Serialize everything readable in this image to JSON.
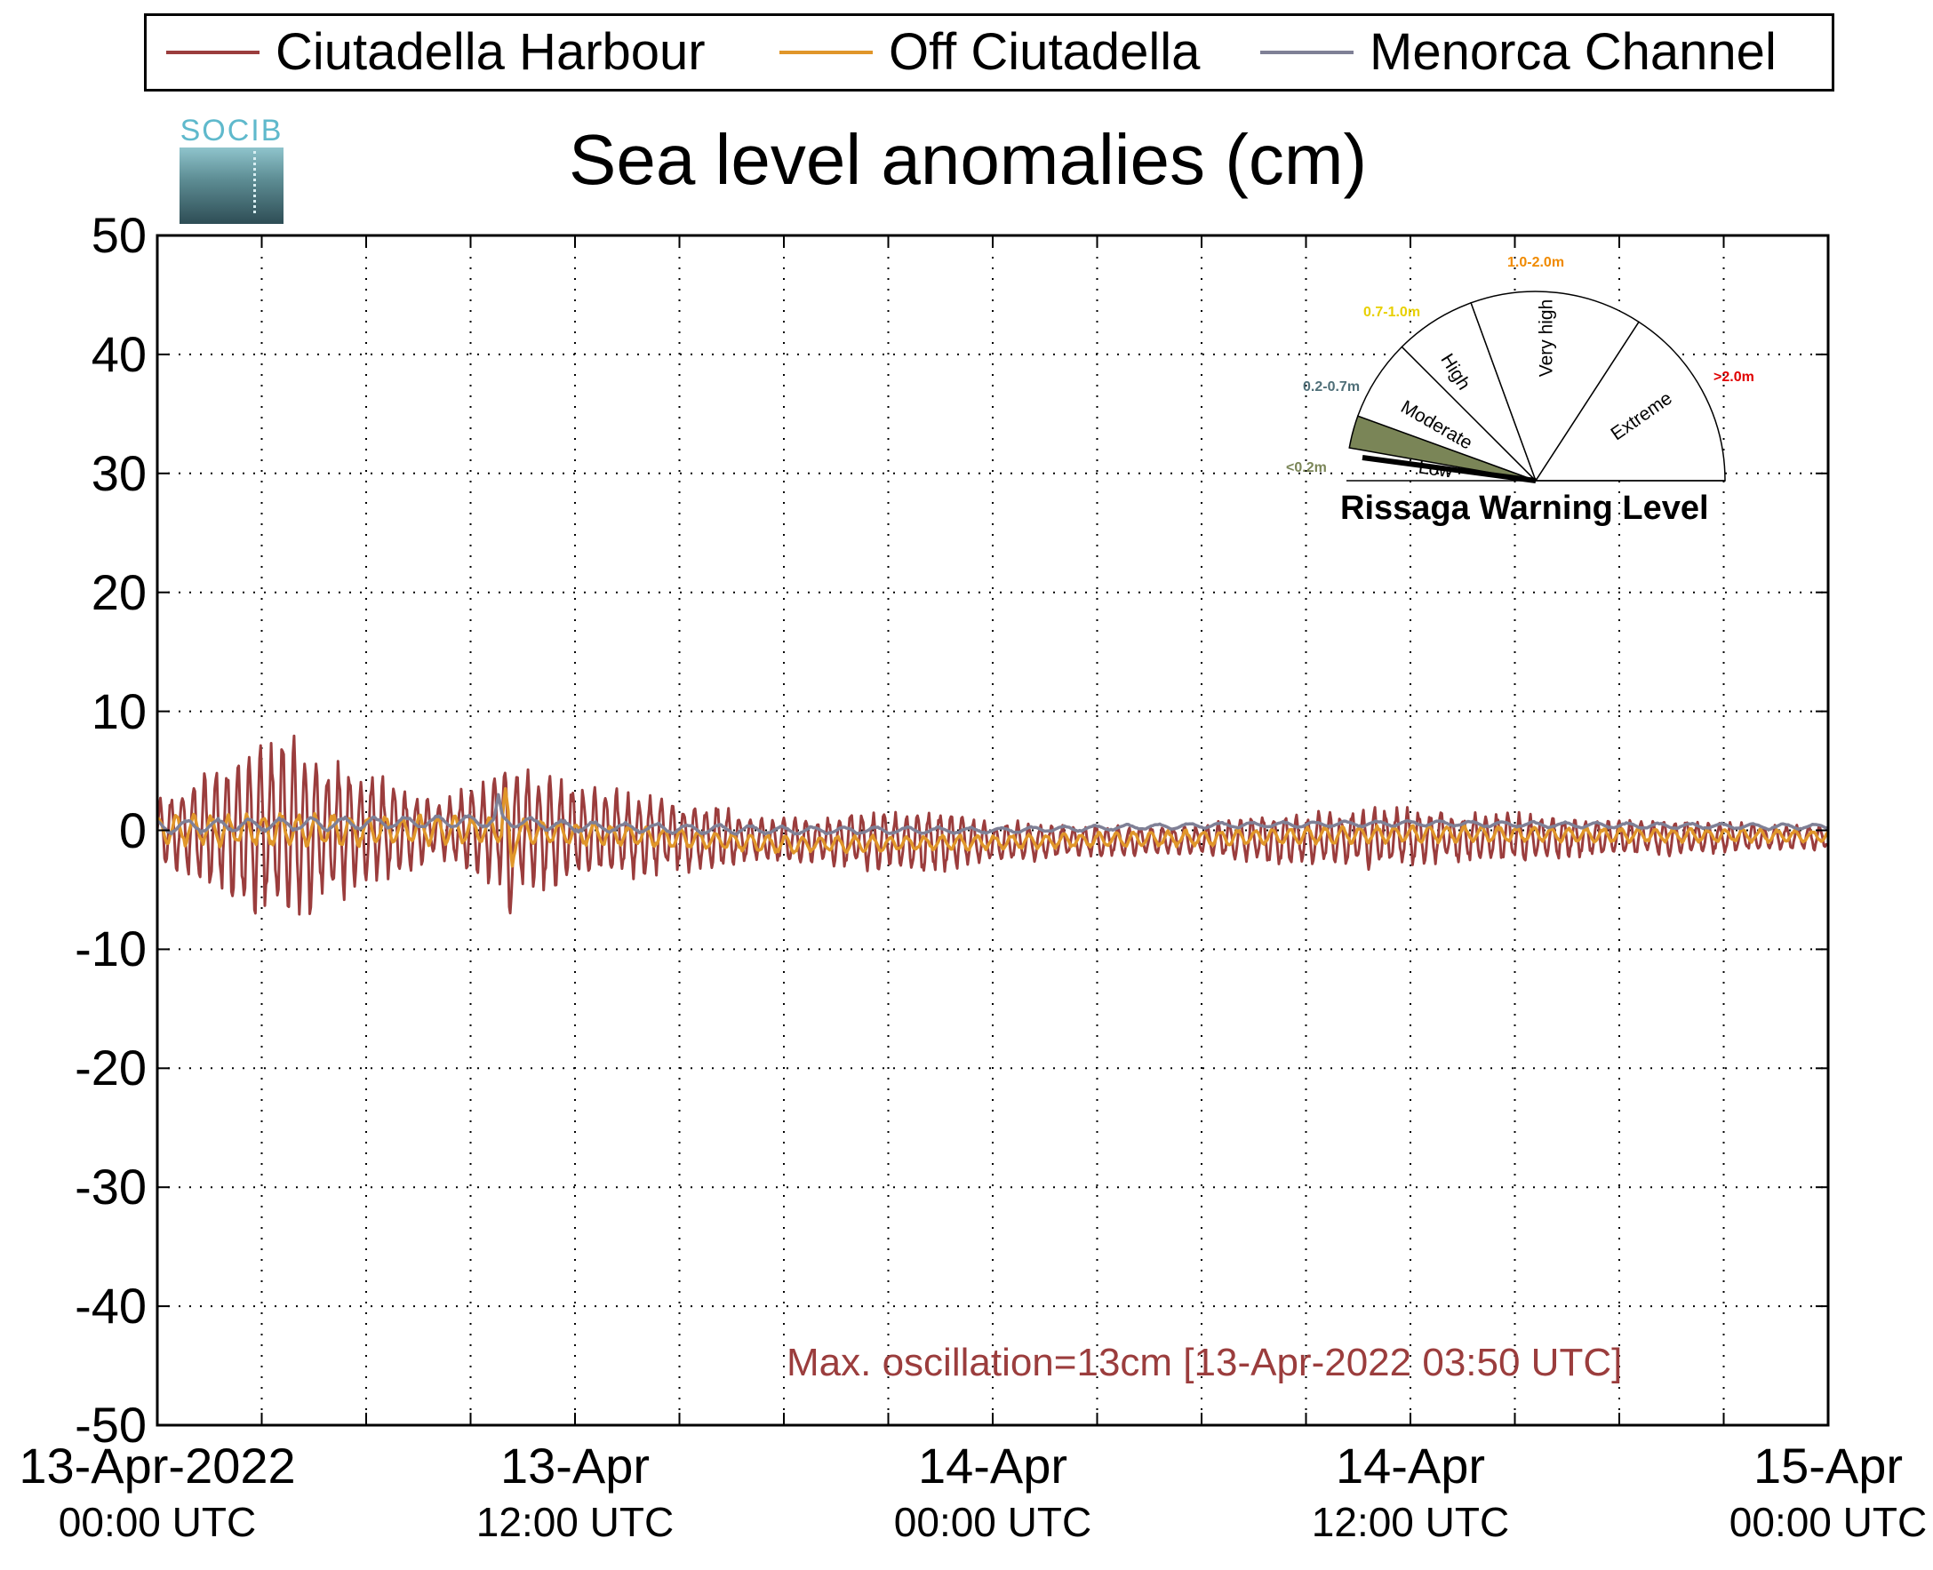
{
  "chart_data": {
    "type": "line",
    "title": "Sea level anomalies (cm)",
    "ylim": [
      -50,
      50
    ],
    "yticks": [
      "50",
      "40",
      "30",
      "20",
      "10",
      "0",
      "-10",
      "-20",
      "-30",
      "-40",
      "-50"
    ],
    "xlim_hours": [
      0,
      48
    ],
    "xticks": [
      {
        "hour": 0,
        "date": "13-Apr-2022",
        "time": "00:00 UTC"
      },
      {
        "hour": 12,
        "date": "13-Apr",
        "time": "12:00 UTC"
      },
      {
        "hour": 24,
        "date": "14-Apr",
        "time": "00:00 UTC"
      },
      {
        "hour": 36,
        "date": "14-Apr",
        "time": "12:00 UTC"
      },
      {
        "hour": 48,
        "date": "15-Apr",
        "time": "00:00 UTC"
      }
    ],
    "grid": true,
    "legend_position": "top",
    "series": [
      {
        "name": "Ciutadella Harbour",
        "color": "#9b3d3d",
        "amplitude_envelope": [
          [
            0,
            2
          ],
          [
            1,
            3.5
          ],
          [
            2,
            5
          ],
          [
            3,
            6
          ],
          [
            4,
            6.5
          ],
          [
            5,
            5
          ],
          [
            6,
            4
          ],
          [
            7,
            3
          ],
          [
            8,
            2
          ],
          [
            9,
            3
          ],
          [
            10,
            4
          ],
          [
            11,
            4.5
          ],
          [
            12,
            3.5
          ],
          [
            13,
            3
          ],
          [
            14,
            3
          ],
          [
            15,
            2.5
          ],
          [
            16,
            2.5
          ],
          [
            17,
            1.5
          ],
          [
            18,
            1.5
          ],
          [
            19,
            1.5
          ],
          [
            20,
            2
          ],
          [
            21,
            2
          ],
          [
            22,
            2.5
          ],
          [
            23,
            2
          ],
          [
            24,
            1.5
          ],
          [
            26,
            1.2
          ],
          [
            28,
            1
          ],
          [
            30,
            1
          ],
          [
            31,
            1.5
          ],
          [
            32,
            1.8
          ],
          [
            34,
            1.8
          ],
          [
            35,
            2.2
          ],
          [
            36,
            2
          ],
          [
            37,
            1.8
          ],
          [
            38,
            1.8
          ],
          [
            40,
            1.5
          ],
          [
            42,
            1.2
          ],
          [
            44,
            1.2
          ],
          [
            46,
            1
          ],
          [
            48,
            0.8
          ]
        ],
        "mean_level": [
          [
            0,
            0
          ],
          [
            10,
            0
          ],
          [
            18,
            -0.8
          ],
          [
            24,
            -1
          ],
          [
            30,
            -0.8
          ],
          [
            36,
            -0.6
          ],
          [
            48,
            -0.6
          ]
        ],
        "events": [
          {
            "hour": 10.1,
            "min": -8
          },
          {
            "hour": 10,
            "max": 5
          }
        ]
      },
      {
        "name": "Off Ciutadella",
        "color": "#e0962a",
        "amplitude_envelope": [
          [
            0,
            1
          ],
          [
            4,
            1.2
          ],
          [
            8,
            1
          ],
          [
            12,
            0.8
          ],
          [
            18,
            0.6
          ],
          [
            24,
            0.5
          ],
          [
            36,
            0.6
          ],
          [
            48,
            0.4
          ]
        ],
        "mean_level": [
          [
            0,
            0
          ],
          [
            10,
            0
          ],
          [
            14,
            -0.5
          ],
          [
            18,
            -1.2
          ],
          [
            24,
            -1
          ],
          [
            36,
            -0.3
          ],
          [
            48,
            -0.5
          ]
        ],
        "events": [
          {
            "hour": 10,
            "max": 3.5
          },
          {
            "hour": 10.2,
            "min": -3
          }
        ]
      },
      {
        "name": "Menorca Channel",
        "color": "#7f8096",
        "amplitude_envelope": [
          [
            0,
            0.5
          ],
          [
            12,
            0.4
          ],
          [
            24,
            0.2
          ],
          [
            48,
            0.2
          ]
        ],
        "mean_level": [
          [
            0,
            0.3
          ],
          [
            10,
            0.8
          ],
          [
            12,
            0.3
          ],
          [
            18,
            0
          ],
          [
            24,
            0
          ],
          [
            30,
            0.4
          ],
          [
            36,
            0.6
          ],
          [
            42,
            0.4
          ],
          [
            48,
            0.3
          ]
        ],
        "events": [
          {
            "hour": 9.8,
            "max": 3
          }
        ]
      }
    ],
    "annotation": "Max. oscillation=13cm [13-Apr-2022 03:50 UTC]"
  },
  "legend": {
    "items": [
      {
        "label": "Ciutadella Harbour",
        "color": "#9b3d3d"
      },
      {
        "label": "Off Ciutadella",
        "color": "#e0962a"
      },
      {
        "label": "Menorca Channel",
        "color": "#7f8096"
      }
    ]
  },
  "logo": {
    "text": "SOCIB"
  },
  "gauge": {
    "title": "Rissaga Warning Level",
    "current_level": "Low",
    "categories": [
      {
        "label": "Low",
        "range": "<0.2m",
        "range_color": "#7a8557",
        "fill": "#7a8557"
      },
      {
        "label": "Moderate",
        "range": "0.2-0.7m",
        "range_color": "#4f6f78",
        "fill": "#ffffff"
      },
      {
        "label": "High",
        "range": "0.7-1.0m",
        "range_color": "#e8d000",
        "fill": "#ffffff"
      },
      {
        "label": "Very high",
        "range": "1.0-2.0m",
        "range_color": "#f08a00",
        "fill": "#ffffff"
      },
      {
        "label": "Extreme",
        "range": ">2.0m",
        "range_color": "#e00000",
        "fill": "#ffffff"
      }
    ]
  }
}
